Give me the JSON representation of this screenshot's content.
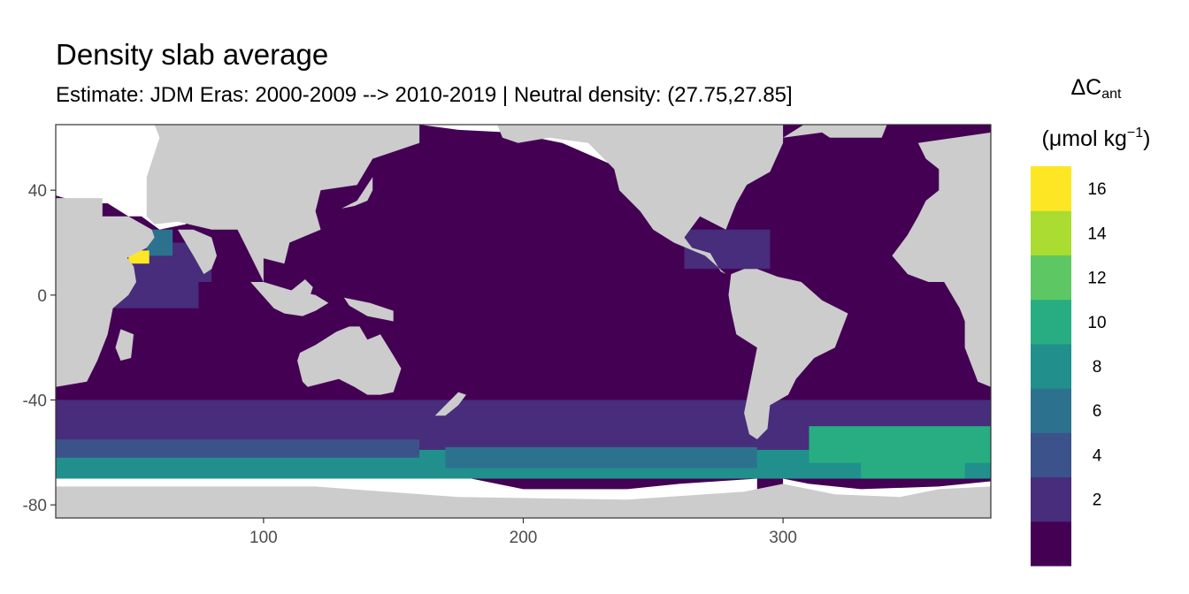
{
  "header": {
    "title": "Density slab average",
    "subtitle": "Estimate: JDM Eras: 2000-2009 --> 2010-2019 | Neutral density: (27.75,27.85]"
  },
  "legend": {
    "symbol": "ΔC",
    "symbol_sub": "ant",
    "unit_prefix": "(μmol kg",
    "unit_sup": "−1",
    "unit_suffix": ")",
    "bins": [
      {
        "color": "#440154"
      },
      {
        "color": "#472D7B"
      },
      {
        "color": "#3B528B"
      },
      {
        "color": "#2C728E"
      },
      {
        "color": "#21908C"
      },
      {
        "color": "#27AD81"
      },
      {
        "color": "#5DC863"
      },
      {
        "color": "#AADC32"
      },
      {
        "color": "#FDE725"
      }
    ],
    "labels": [
      "2",
      "4",
      "6",
      "8",
      "10",
      "12",
      "14",
      "16"
    ]
  },
  "chart_data": {
    "type": "heatmap",
    "title": "Density slab average",
    "subtitle": "Estimate: JDM Eras: 2000-2009 --> 2010-2019 | Neutral density: (27.75,27.85]",
    "xlabel": "",
    "ylabel": "",
    "xlim": [
      20,
      380
    ],
    "ylim": [
      -85,
      65
    ],
    "x_ticks": [
      100,
      200,
      300
    ],
    "y_ticks": [
      40,
      0,
      -40,
      -80
    ],
    "x_tick_labels": [
      "100",
      "200",
      "300"
    ],
    "y_tick_labels": [
      "40",
      "0",
      "-40",
      "-80"
    ],
    "legend_placement": "right",
    "land_color": "#CCCCCC",
    "no_data_color": "#FFFFFF",
    "background_color": "#440154",
    "zones": [
      {
        "xmin": 20,
        "xmax": 380,
        "ymin": -59,
        "ymax": -40,
        "bin": 1
      },
      {
        "xmin": 20,
        "xmax": 380,
        "ymin": -70,
        "ymax": -59,
        "bin": 4
      },
      {
        "xmin": 20,
        "xmax": 160,
        "ymin": -62,
        "ymax": -55,
        "bin": 2
      },
      {
        "xmin": 170,
        "xmax": 290,
        "ymin": -66,
        "ymax": -58,
        "bin": 3
      },
      {
        "xmin": 310,
        "xmax": 380,
        "ymin": -64,
        "ymax": -50,
        "bin": 5
      },
      {
        "xmin": 330,
        "xmax": 370,
        "ymin": -70,
        "ymax": -62,
        "bin": 5
      },
      {
        "xmin": 40,
        "xmax": 75,
        "ymin": -5,
        "ymax": 20,
        "bin": 1
      },
      {
        "xmin": 75,
        "xmax": 80,
        "ymin": 5,
        "ymax": 20,
        "bin": 1
      },
      {
        "xmin": 55,
        "xmax": 65,
        "ymin": 15,
        "ymax": 25,
        "bin": 3
      },
      {
        "xmin": 48,
        "xmax": 56,
        "ymin": 12,
        "ymax": 17,
        "bin": 8
      },
      {
        "xmin": 262,
        "xmax": 295,
        "ymin": 10,
        "ymax": 25,
        "bin": 1
      }
    ]
  }
}
